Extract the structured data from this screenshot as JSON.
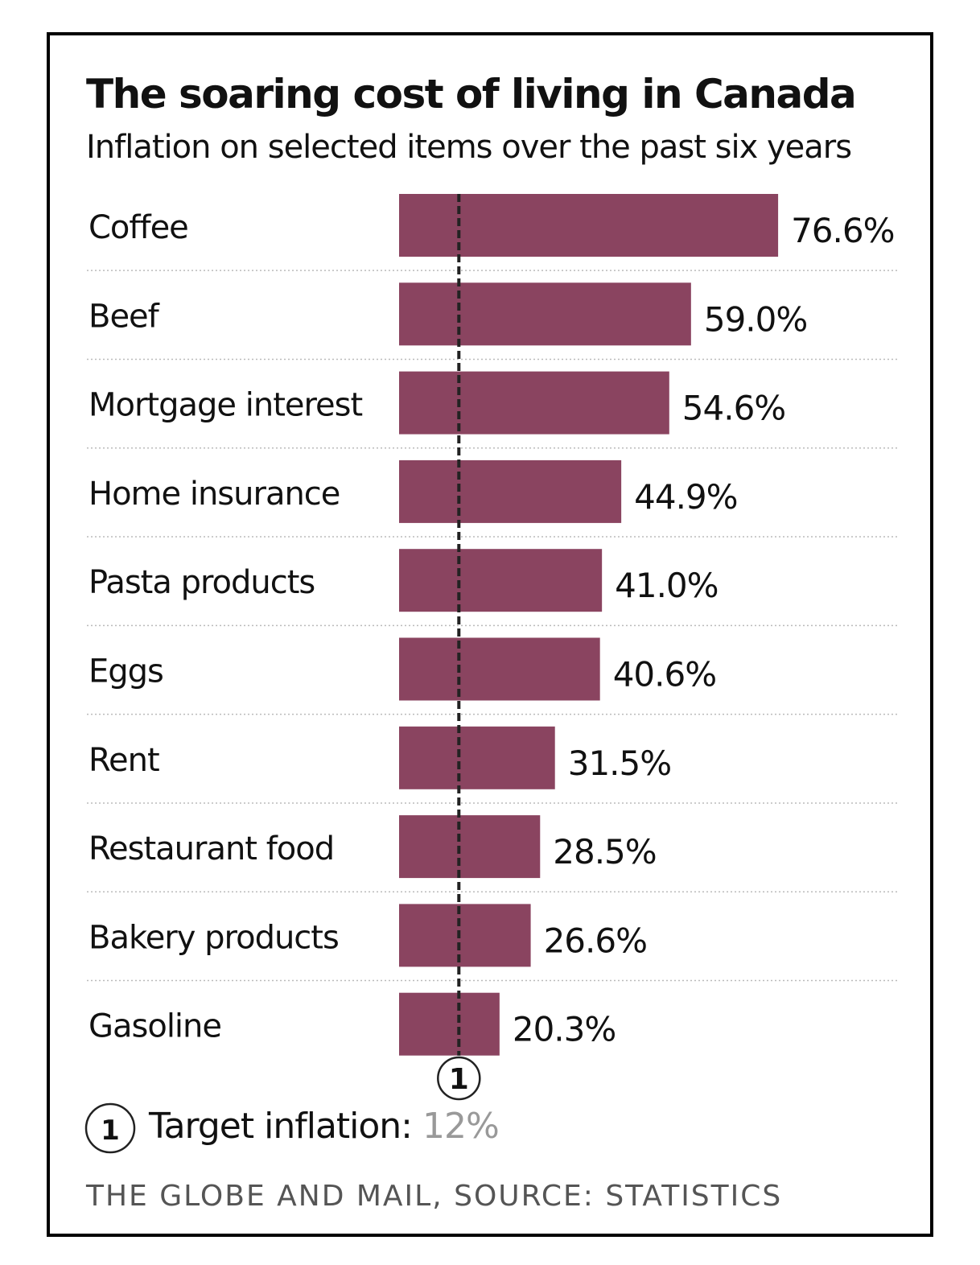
{
  "chart_data": {
    "type": "bar",
    "orientation": "horizontal",
    "title": "The soaring cost of living in Canada",
    "subtitle": "Inflation on selected items over the past six years",
    "categories": [
      "Coffee",
      "Beef",
      "Mortgage interest",
      "Home insurance",
      "Pasta products",
      "Eggs",
      "Rent",
      "Restaurant food",
      "Bakery products",
      "Gasoline"
    ],
    "values": [
      76.6,
      59.0,
      54.6,
      44.9,
      41.0,
      40.6,
      31.5,
      28.5,
      26.6,
      20.3
    ],
    "value_labels": [
      "76.6%",
      "59.0%",
      "54.6%",
      "44.9%",
      "41.0%",
      "40.6%",
      "31.5%",
      "28.5%",
      "26.6%",
      "20.3%"
    ],
    "unit": "%",
    "reference_line": {
      "value": 12,
      "style": "dashed",
      "marker": "1"
    },
    "bar_color": "#8a4460",
    "grid": false
  },
  "legend": {
    "marker": "1",
    "label": "Target inflation: ",
    "value": "12%"
  },
  "footer": "THE GLOBE AND MAIL, SOURCE: STATISTICS"
}
